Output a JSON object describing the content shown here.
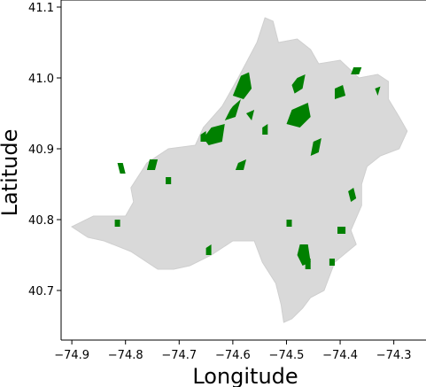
{
  "chart_data": {
    "type": "map",
    "xlabel": "Longitude",
    "ylabel": "Latitude",
    "xlim": [
      -74.92,
      -74.24
    ],
    "ylim": [
      40.63,
      41.11
    ],
    "x_ticks": [
      -74.9,
      -74.8,
      -74.7,
      -74.6,
      -74.5,
      -74.4,
      -74.3
    ],
    "y_ticks": [
      40.7,
      40.8,
      40.9,
      41.0,
      41.1
    ],
    "x_tick_labels": [
      "−74.9",
      "−74.8",
      "−74.7",
      "−74.6",
      "−74.5",
      "−74.4",
      "−74.3"
    ],
    "y_tick_labels": [
      "40.7",
      "40.8",
      "40.9",
      "41.0",
      "41.1"
    ],
    "grid": false,
    "region_color": "#d9d9d9",
    "highlight_color": "#008000",
    "region_outline": [
      [
        -74.9,
        40.79
      ],
      [
        -74.86,
        40.805
      ],
      [
        -74.8,
        40.805
      ],
      [
        -74.785,
        40.825
      ],
      [
        -74.79,
        40.845
      ],
      [
        -74.76,
        40.88
      ],
      [
        -74.72,
        40.9
      ],
      [
        -74.67,
        40.905
      ],
      [
        -74.655,
        40.93
      ],
      [
        -74.62,
        40.96
      ],
      [
        -74.59,
        41.0
      ],
      [
        -74.555,
        41.05
      ],
      [
        -74.54,
        41.085
      ],
      [
        -74.525,
        41.08
      ],
      [
        -74.515,
        41.05
      ],
      [
        -74.48,
        41.055
      ],
      [
        -74.455,
        41.04
      ],
      [
        -74.44,
        41.02
      ],
      [
        -74.4,
        41.025
      ],
      [
        -74.365,
        41.0
      ],
      [
        -74.33,
        41.005
      ],
      [
        -74.31,
        40.995
      ],
      [
        -74.31,
        40.97
      ],
      [
        -74.29,
        40.945
      ],
      [
        -74.275,
        40.925
      ],
      [
        -74.29,
        40.9
      ],
      [
        -74.325,
        40.89
      ],
      [
        -74.35,
        40.875
      ],
      [
        -74.36,
        40.85
      ],
      [
        -74.36,
        40.82
      ],
      [
        -74.38,
        40.785
      ],
      [
        -74.37,
        40.765
      ],
      [
        -74.41,
        40.74
      ],
      [
        -74.43,
        40.7
      ],
      [
        -74.455,
        40.69
      ],
      [
        -74.47,
        40.675
      ],
      [
        -74.49,
        40.66
      ],
      [
        -74.505,
        40.655
      ],
      [
        -74.51,
        40.68
      ],
      [
        -74.52,
        40.71
      ],
      [
        -74.545,
        40.74
      ],
      [
        -74.56,
        40.77
      ],
      [
        -74.6,
        40.77
      ],
      [
        -74.64,
        40.75
      ],
      [
        -74.68,
        40.735
      ],
      [
        -74.71,
        40.73
      ],
      [
        -74.74,
        40.73
      ],
      [
        -74.79,
        40.755
      ],
      [
        -74.84,
        40.77
      ],
      [
        -74.87,
        40.775
      ]
    ],
    "highlighted_areas": [
      [
        [
          -74.585,
          41.003
        ],
        [
          -74.57,
          41.008
        ],
        [
          -74.565,
          40.985
        ],
        [
          -74.58,
          40.97
        ],
        [
          -74.6,
          40.975
        ]
      ],
      [
        [
          -74.6,
          40.96
        ],
        [
          -74.585,
          40.97
        ],
        [
          -74.595,
          40.945
        ],
        [
          -74.615,
          40.94
        ],
        [
          -74.605,
          40.955
        ]
      ],
      [
        [
          -74.48,
          41.0
        ],
        [
          -74.465,
          41.005
        ],
        [
          -74.47,
          40.985
        ],
        [
          -74.485,
          40.978
        ],
        [
          -74.49,
          40.99
        ]
      ],
      [
        [
          -74.49,
          40.955
        ],
        [
          -74.46,
          40.965
        ],
        [
          -74.455,
          40.945
        ],
        [
          -74.475,
          40.93
        ],
        [
          -74.5,
          40.935
        ]
      ],
      [
        [
          -74.64,
          40.93
        ],
        [
          -74.615,
          40.935
        ],
        [
          -74.62,
          40.91
        ],
        [
          -74.645,
          40.905
        ],
        [
          -74.655,
          40.915
        ]
      ],
      [
        [
          -74.45,
          40.91
        ],
        [
          -74.435,
          40.915
        ],
        [
          -74.44,
          40.895
        ],
        [
          -74.455,
          40.89
        ]
      ],
      [
        [
          -74.41,
          40.985
        ],
        [
          -74.395,
          40.99
        ],
        [
          -74.39,
          40.975
        ],
        [
          -74.41,
          40.97
        ]
      ],
      [
        [
          -74.375,
          41.015
        ],
        [
          -74.36,
          41.015
        ],
        [
          -74.365,
          41.005
        ],
        [
          -74.38,
          41.005
        ]
      ],
      [
        [
          -74.335,
          40.985
        ],
        [
          -74.325,
          40.988
        ],
        [
          -74.33,
          40.975
        ]
      ],
      [
        [
          -74.815,
          40.88
        ],
        [
          -74.805,
          40.88
        ],
        [
          -74.8,
          40.865
        ],
        [
          -74.81,
          40.865
        ]
      ],
      [
        [
          -74.755,
          40.885
        ],
        [
          -74.74,
          40.885
        ],
        [
          -74.745,
          40.87
        ],
        [
          -74.76,
          40.87
        ]
      ],
      [
        [
          -74.59,
          40.88
        ],
        [
          -74.575,
          40.885
        ],
        [
          -74.58,
          40.87
        ],
        [
          -74.595,
          40.87
        ]
      ],
      [
        [
          -74.575,
          40.95
        ],
        [
          -74.56,
          40.955
        ],
        [
          -74.565,
          40.94
        ]
      ],
      [
        [
          -74.475,
          40.765
        ],
        [
          -74.46,
          40.765
        ],
        [
          -74.455,
          40.74
        ],
        [
          -74.47,
          40.735
        ],
        [
          -74.48,
          40.75
        ]
      ],
      [
        [
          -74.465,
          40.745
        ],
        [
          -74.455,
          40.745
        ],
        [
          -74.455,
          40.73
        ],
        [
          -74.465,
          40.73
        ]
      ],
      [
        [
          -74.405,
          40.79
        ],
        [
          -74.39,
          40.79
        ],
        [
          -74.39,
          40.78
        ],
        [
          -74.405,
          40.78
        ]
      ],
      [
        [
          -74.385,
          40.84
        ],
        [
          -74.375,
          40.845
        ],
        [
          -74.37,
          40.83
        ],
        [
          -74.38,
          40.825
        ]
      ],
      [
        [
          -74.82,
          40.8
        ],
        [
          -74.81,
          40.8
        ],
        [
          -74.81,
          40.79
        ],
        [
          -74.82,
          40.79
        ]
      ],
      [
        [
          -74.65,
          40.76
        ],
        [
          -74.64,
          40.765
        ],
        [
          -74.64,
          40.75
        ],
        [
          -74.65,
          40.75
        ]
      ],
      [
        [
          -74.5,
          40.8
        ],
        [
          -74.49,
          40.8
        ],
        [
          -74.49,
          40.79
        ],
        [
          -74.5,
          40.79
        ]
      ],
      [
        [
          -74.725,
          40.86
        ],
        [
          -74.715,
          40.86
        ],
        [
          -74.715,
          40.85
        ],
        [
          -74.725,
          40.85
        ]
      ],
      [
        [
          -74.42,
          40.745
        ],
        [
          -74.41,
          40.745
        ],
        [
          -74.41,
          40.735
        ],
        [
          -74.42,
          40.735
        ]
      ],
      [
        [
          -74.66,
          40.92
        ],
        [
          -74.65,
          40.925
        ],
        [
          -74.65,
          40.91
        ],
        [
          -74.66,
          40.91
        ]
      ],
      [
        [
          -74.545,
          40.93
        ],
        [
          -74.535,
          40.935
        ],
        [
          -74.535,
          40.92
        ],
        [
          -74.545,
          40.92
        ]
      ]
    ]
  }
}
